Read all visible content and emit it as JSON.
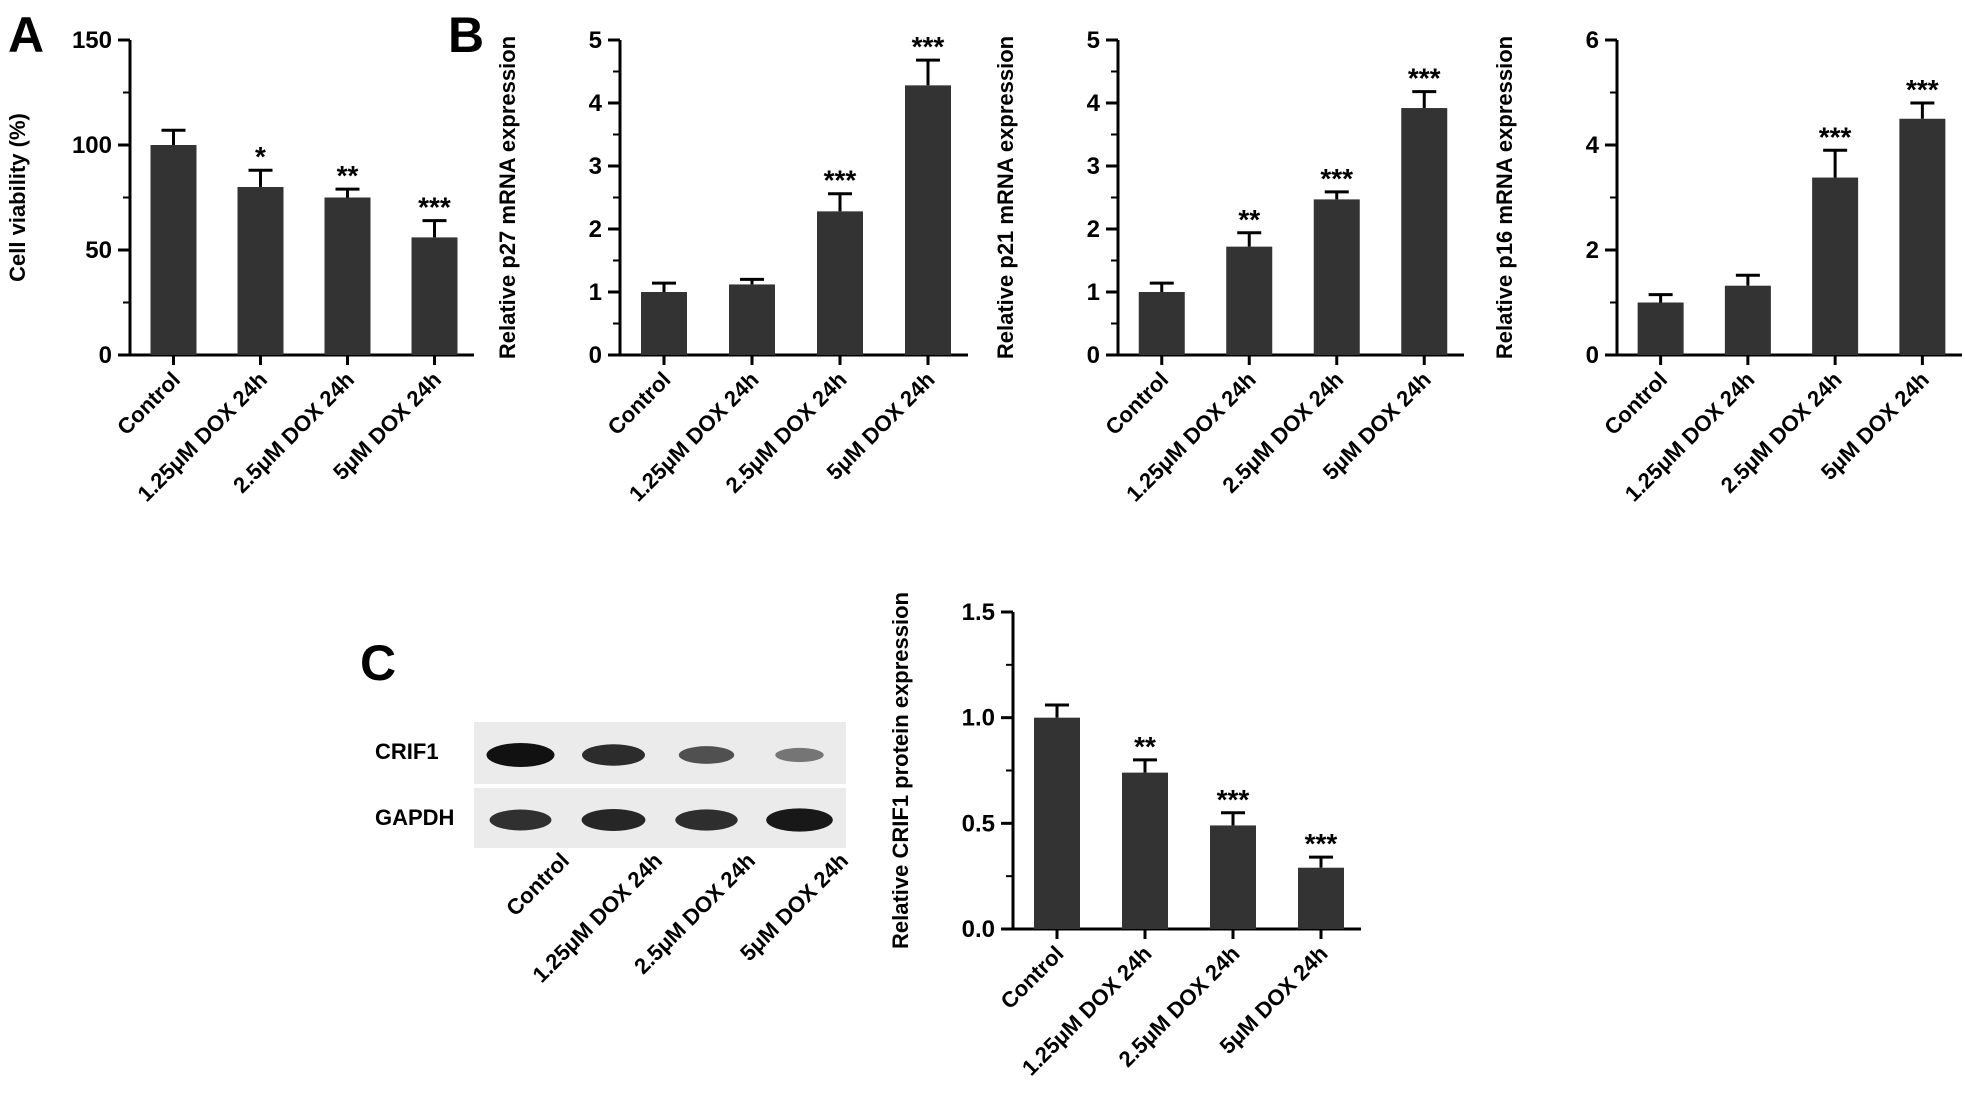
{
  "panels": {
    "A": {
      "letter": "A"
    },
    "B": {
      "letter": "B"
    },
    "C": {
      "letter": "C"
    }
  },
  "colors": {
    "bar": "#333333",
    "axis": "#000000",
    "band": "#111111",
    "blot_bg": "#ebebeb"
  },
  "chart_data": [
    {
      "id": "A",
      "type": "bar",
      "categories": [
        "Control",
        "1.25μM DOX 24h",
        "2.5μM DOX 24h",
        "5μM DOX 24h"
      ],
      "values": [
        100,
        80,
        75,
        56
      ],
      "errors": [
        7,
        8,
        4,
        8
      ],
      "significance": [
        "",
        "*",
        "**",
        "***"
      ],
      "ylabel": "Cell viability (%)",
      "ylim": [
        0,
        150
      ],
      "yticks": [
        0,
        50,
        100,
        150
      ]
    },
    {
      "id": "B1",
      "type": "bar",
      "categories": [
        "Control",
        "1.25μM DOX 24h",
        "2.5μM DOX 24h",
        "5μM DOX 24h"
      ],
      "values": [
        1.0,
        1.12,
        2.28,
        4.28
      ],
      "errors": [
        0.14,
        0.08,
        0.28,
        0.4
      ],
      "significance": [
        "",
        "",
        "***",
        "***"
      ],
      "ylabel": "Relative p27 mRNA expression",
      "ylim": [
        0,
        5
      ],
      "yticks": [
        0,
        1,
        2,
        3,
        4,
        5
      ]
    },
    {
      "id": "B2",
      "type": "bar",
      "categories": [
        "Control",
        "1.25μM DOX 24h",
        "2.5μM DOX 24h",
        "5μM DOX 24h"
      ],
      "values": [
        1.0,
        1.72,
        2.47,
        3.92
      ],
      "errors": [
        0.14,
        0.22,
        0.12,
        0.26
      ],
      "significance": [
        "",
        "**",
        "***",
        "***"
      ],
      "ylabel": "Relative p21 mRNA expression",
      "ylim": [
        0,
        5
      ],
      "yticks": [
        0,
        1,
        2,
        3,
        4,
        5
      ]
    },
    {
      "id": "B3",
      "type": "bar",
      "categories": [
        "Control",
        "1.25μM DOX 24h",
        "2.5μM DOX 24h",
        "5μM DOX 24h"
      ],
      "values": [
        1.0,
        1.32,
        3.38,
        4.5
      ],
      "errors": [
        0.15,
        0.2,
        0.52,
        0.3
      ],
      "significance": [
        "",
        "",
        "***",
        "***"
      ],
      "ylabel": "Relative p16 mRNA expression",
      "ylim": [
        0,
        6
      ],
      "yticks": [
        0,
        2,
        4,
        6
      ]
    },
    {
      "id": "C",
      "type": "bar",
      "categories": [
        "Control",
        "1.25μM DOX 24h",
        "2.5μM DOX 24h",
        "5μM DOX 24h"
      ],
      "values": [
        1.0,
        0.74,
        0.49,
        0.29
      ],
      "errors": [
        0.06,
        0.06,
        0.06,
        0.05
      ],
      "significance": [
        "",
        "**",
        "***",
        "***"
      ],
      "ylabel": "Relative CRIF1 protein expression",
      "ylim": [
        0,
        1.5
      ],
      "yticks": [
        0.0,
        0.5,
        1.0,
        1.5
      ],
      "ytick_labels": [
        "0.0",
        "0.5",
        "1.0",
        "1.5"
      ]
    }
  ],
  "western_blot": {
    "rows": [
      "CRIF1",
      "GAPDH"
    ],
    "lanes": [
      "Control",
      "1.25μM DOX 24h",
      "2.5μM DOX 24h",
      "5μM DOX 24h"
    ],
    "band_intensity": {
      "CRIF1": [
        1.0,
        0.82,
        0.55,
        0.3
      ],
      "GAPDH": [
        0.78,
        0.85,
        0.8,
        0.95
      ]
    }
  }
}
